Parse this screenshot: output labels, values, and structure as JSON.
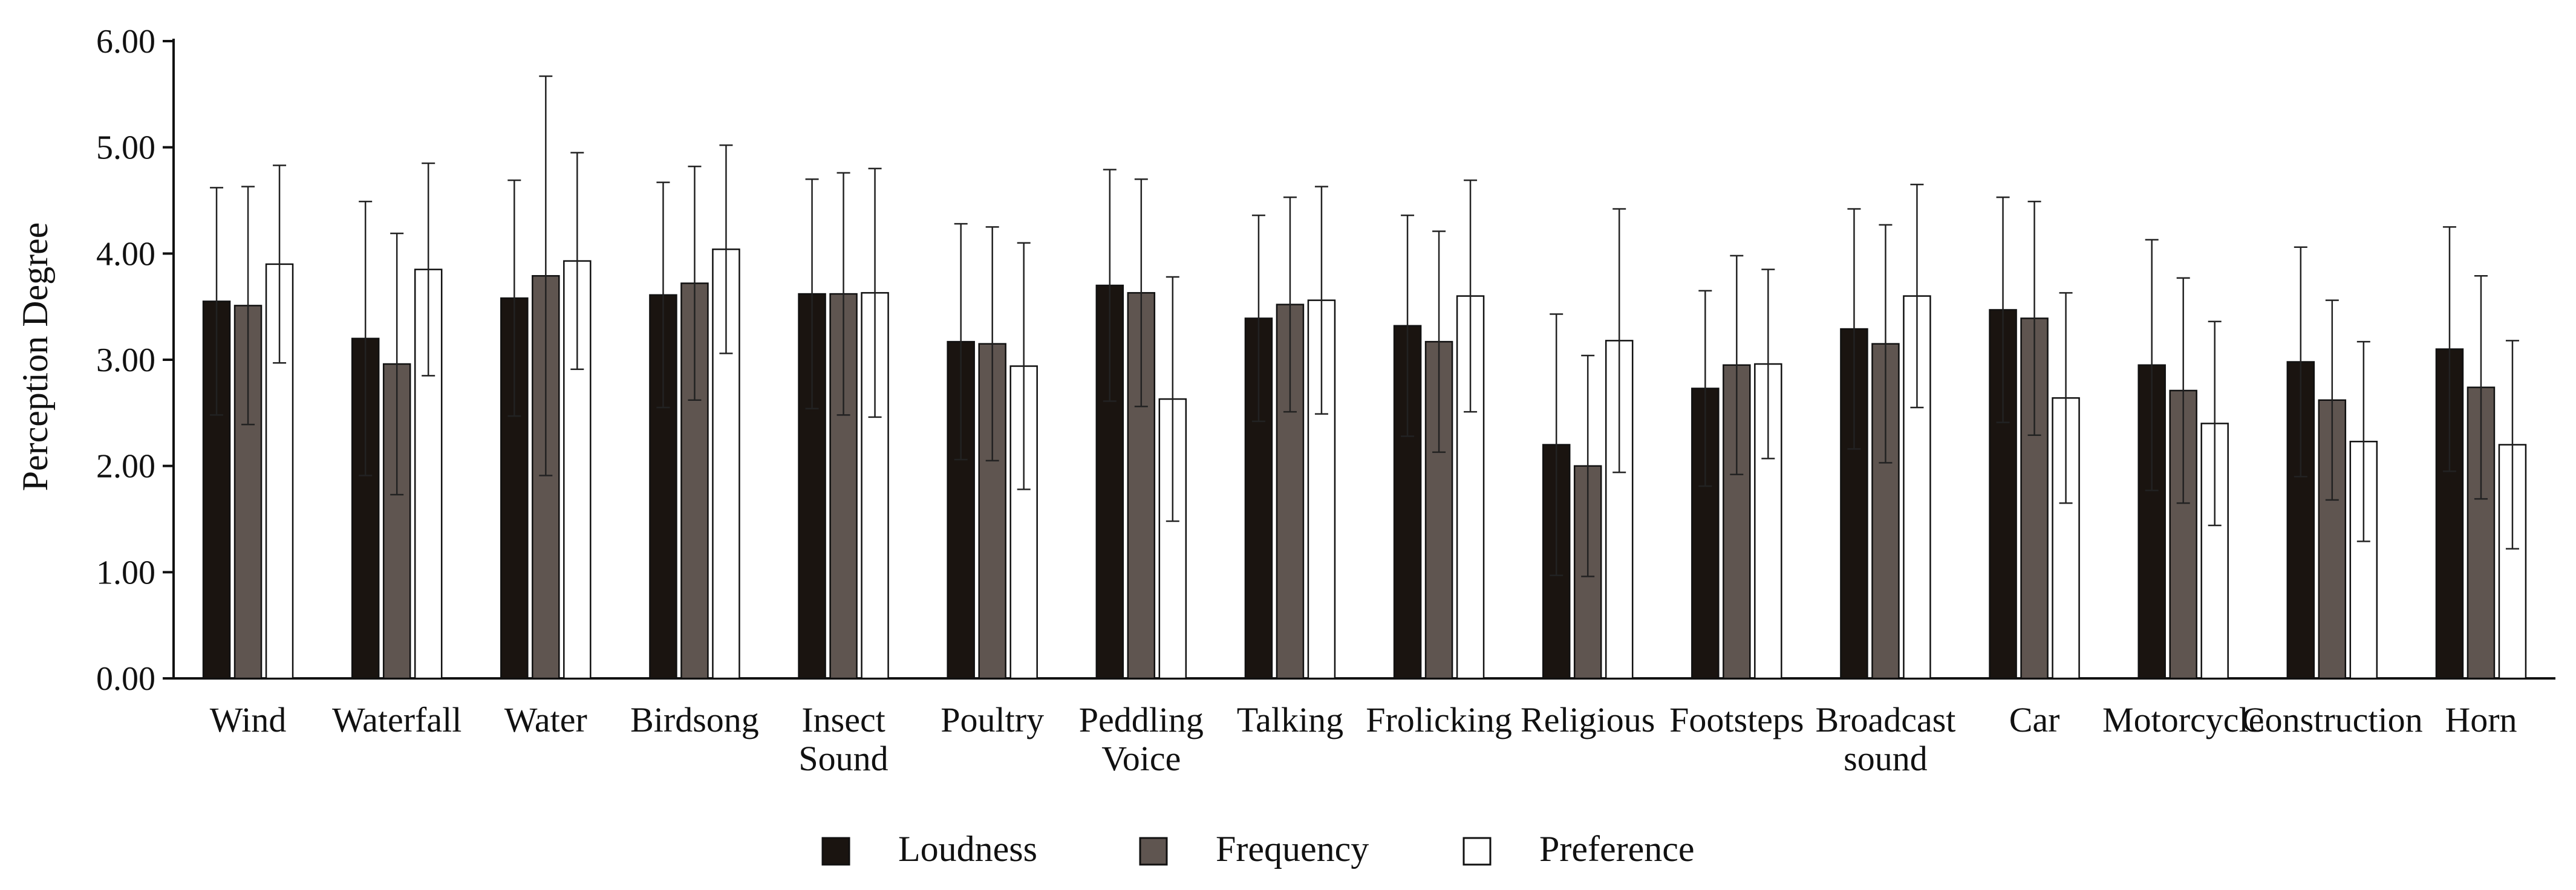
{
  "chart_data": {
    "type": "bar",
    "title": "",
    "xlabel": "",
    "ylabel": "Perception Degree",
    "ylim": [
      0,
      6
    ],
    "yticks": [
      "0.00",
      "1.00",
      "2.00",
      "3.00",
      "4.00",
      "5.00",
      "6.00"
    ],
    "categories": [
      [
        "Wind"
      ],
      [
        "Waterfall"
      ],
      [
        "Water"
      ],
      [
        "Birdsong"
      ],
      [
        "Insect",
        "Sound"
      ],
      [
        "Poultry"
      ],
      [
        "Peddling",
        "Voice"
      ],
      [
        "Talking"
      ],
      [
        "Frolicking"
      ],
      [
        "Religious"
      ],
      [
        "Footsteps"
      ],
      [
        "Broadcast",
        "sound"
      ],
      [
        "Car"
      ],
      [
        "Motorcycle"
      ],
      [
        "Construction"
      ],
      [
        "Horn"
      ]
    ],
    "series": [
      {
        "name": "Loudness",
        "color": "#1a1410",
        "values": [
          3.55,
          3.2,
          3.58,
          3.61,
          3.62,
          3.17,
          3.7,
          3.39,
          3.32,
          2.2,
          2.73,
          3.29,
          3.47,
          2.95,
          2.98,
          3.1
        ],
        "errors": [
          1.07,
          1.29,
          1.11,
          1.06,
          1.08,
          1.11,
          1.09,
          0.97,
          1.04,
          1.23,
          0.92,
          1.13,
          1.06,
          1.18,
          1.08,
          1.15
        ]
      },
      {
        "name": "Frequency",
        "color": "#5f5550",
        "values": [
          3.51,
          2.96,
          3.79,
          3.72,
          3.62,
          3.15,
          3.63,
          3.52,
          3.17,
          2.0,
          2.95,
          3.15,
          3.39,
          2.71,
          2.62,
          2.74
        ],
        "errors": [
          1.12,
          1.23,
          1.88,
          1.1,
          1.14,
          1.1,
          1.07,
          1.01,
          1.04,
          1.04,
          1.03,
          1.12,
          1.1,
          1.06,
          0.94,
          1.05
        ]
      },
      {
        "name": "Preference",
        "color": "#ffffff",
        "values": [
          3.9,
          3.85,
          3.93,
          4.04,
          3.63,
          2.94,
          2.63,
          3.56,
          3.6,
          3.18,
          2.96,
          3.6,
          2.64,
          2.4,
          2.23,
          2.2
        ],
        "errors": [
          0.93,
          1.0,
          1.02,
          0.98,
          1.17,
          1.16,
          1.15,
          1.07,
          1.09,
          1.24,
          0.89,
          1.05,
          0.99,
          0.96,
          0.94,
          0.98
        ]
      }
    ],
    "legend": {
      "position": "bottom"
    }
  }
}
